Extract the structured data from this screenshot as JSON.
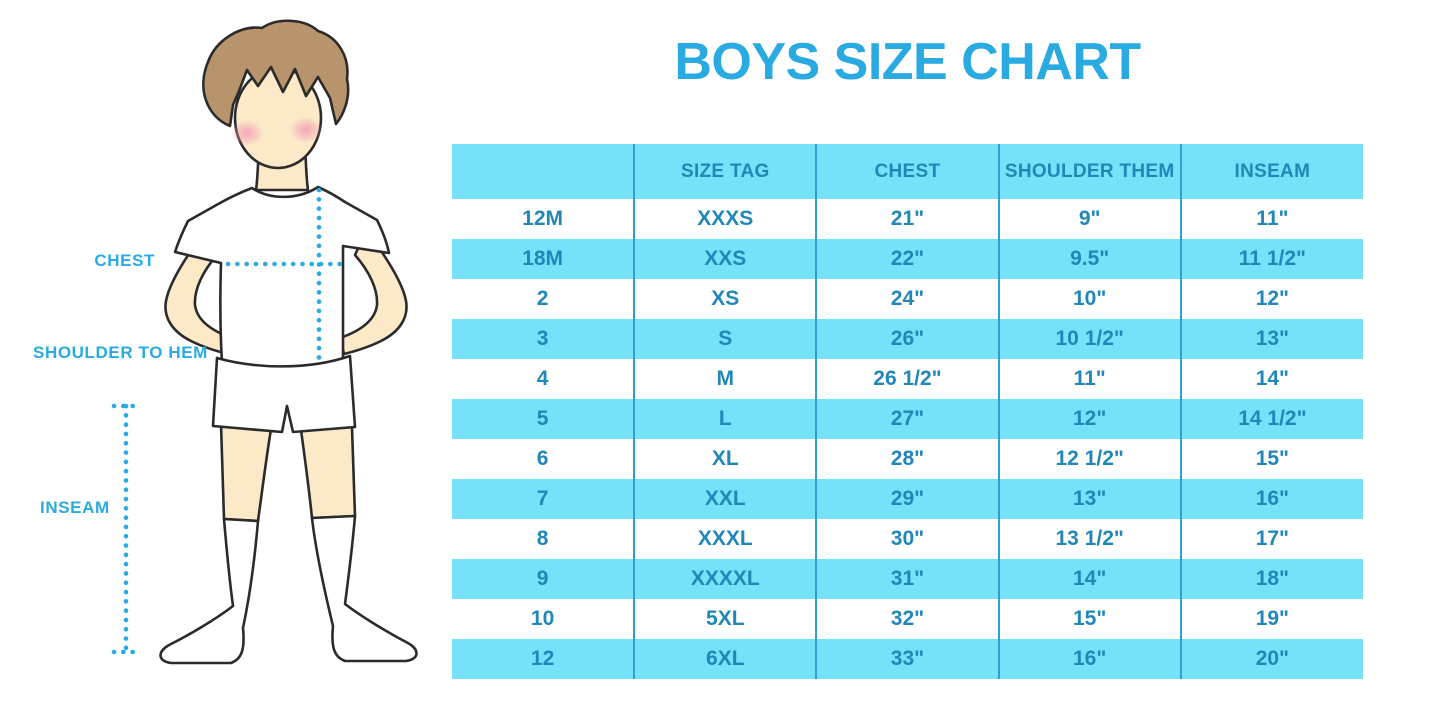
{
  "title": "BOYS SIZE CHART",
  "figure": {
    "labels": {
      "chest": "CHEST",
      "shoulder_to_hem": "SHOULDER TO HEM",
      "inseam": "INSEAM"
    }
  },
  "colors": {
    "accent_cyan": "#29ABE2",
    "row_and_header_blue": "#75E2F9",
    "table_text_blue": "#2187B8",
    "column_divider_blue": "#2E9FD0",
    "hair_brown": "#B8946C",
    "skin_tone": "#FBE9C8",
    "blush_pink": "#F29BB4",
    "outline_dark": "#2B2B2B"
  },
  "chart_data": {
    "type": "table",
    "title": "BOYS SIZE CHART",
    "columns": [
      "",
      "SIZE TAG",
      "CHEST",
      "SHOULDER THEM",
      "INSEAM"
    ],
    "rows": [
      [
        "12M",
        "XXXS",
        "21\"",
        "9\"",
        "11\""
      ],
      [
        "18M",
        "XXS",
        "22\"",
        "9.5\"",
        "11 1/2\""
      ],
      [
        "2",
        "XS",
        "24\"",
        "10\"",
        "12\""
      ],
      [
        "3",
        "S",
        "26\"",
        "10 1/2\"",
        "13\""
      ],
      [
        "4",
        "M",
        "26 1/2\"",
        "11\"",
        "14\""
      ],
      [
        "5",
        "L",
        "27\"",
        "12\"",
        "14 1/2\""
      ],
      [
        "6",
        "XL",
        "28\"",
        "12 1/2\"",
        "15\""
      ],
      [
        "7",
        "XXL",
        "29\"",
        "13\"",
        "16\""
      ],
      [
        "8",
        "XXXL",
        "30\"",
        "13 1/2\"",
        "17\""
      ],
      [
        "9",
        "XXXXL",
        "31\"",
        "14\"",
        "18\""
      ],
      [
        "10",
        "5XL",
        "32\"",
        "15\"",
        "19\""
      ],
      [
        "12",
        "6XL",
        "33\"",
        "16\"",
        "20\""
      ]
    ],
    "row_striping": "header and alternating rows filled light blue, others white",
    "grid": "vertical column dividers only, no outer border"
  }
}
